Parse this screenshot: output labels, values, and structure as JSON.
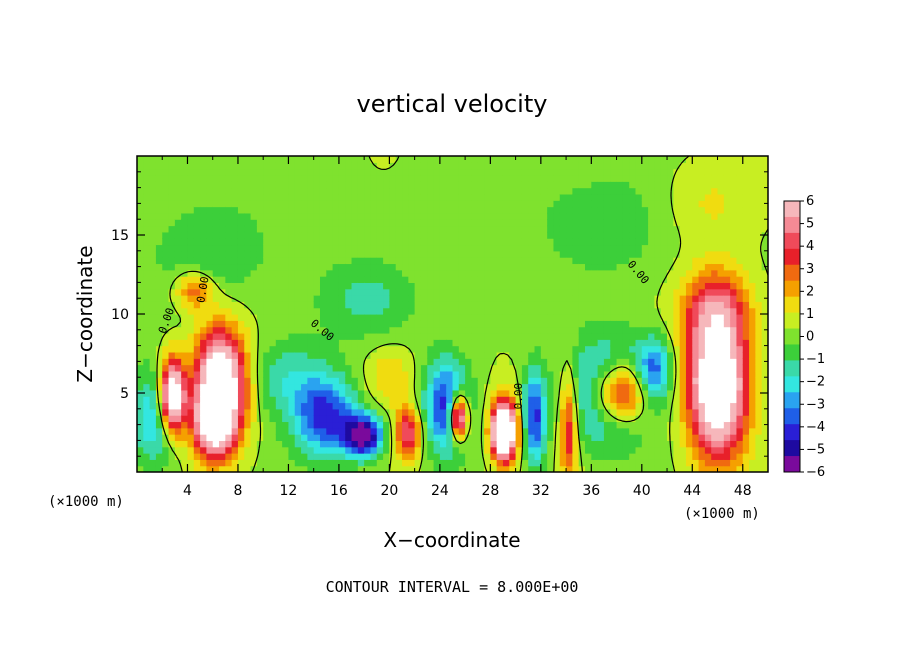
{
  "chart_data": {
    "type": "heatmap",
    "title": "vertical velocity",
    "xlabel": "X−coordinate",
    "ylabel": "Z−coordinate",
    "x_unit_left": "(×1000 m)",
    "x_unit_right": "(×1000 m)",
    "xlim": [
      0,
      50
    ],
    "ylim": [
      0,
      20
    ],
    "x_ticks": [
      4,
      8,
      12,
      16,
      20,
      24,
      28,
      32,
      36,
      40,
      44,
      48
    ],
    "y_ticks": [
      5,
      10,
      15
    ],
    "colorbar": {
      "labels": [
        "6",
        "5",
        "4",
        "3",
        "2",
        "1",
        "0",
        "−1",
        "−2",
        "−3",
        "−4",
        "−5",
        "−6"
      ],
      "min": -6,
      "max": 6,
      "colors": [
        "#7a0a9c",
        "#1e0aa0",
        "#2a1fd6",
        "#1f5fe8",
        "#2aa3f0",
        "#33e6e0",
        "#3ad9a8",
        "#3ccf3a",
        "#7fe22e",
        "#c8ee22",
        "#f0dc10",
        "#f5a000",
        "#f06a10",
        "#e8202a",
        "#f04a5a",
        "#f58a95",
        "#f6b7bb"
      ]
    },
    "contour_labels": [
      "0.00",
      "0.00",
      "0.00",
      "0.00",
      "0.00"
    ],
    "features": [
      {
        "x": 2.8,
        "z": 4.8,
        "w": 1.0,
        "h": 2.3,
        "v": 9
      },
      {
        "x": 6.6,
        "z": 5.5,
        "w": 2.0,
        "h": 3.5,
        "v": 9
      },
      {
        "x": 6.0,
        "z": 3.0,
        "w": 1.5,
        "h": 2.0,
        "v": 5
      },
      {
        "x": 1.5,
        "z": 3.5,
        "w": 1.8,
        "h": 3.0,
        "v": -3
      },
      {
        "x": 4.5,
        "z": 11.5,
        "w": 1.5,
        "h": 1.2,
        "v": 3
      },
      {
        "x": 15.0,
        "z": 3.5,
        "w": 2.5,
        "h": 2.5,
        "v": -4.5
      },
      {
        "x": 18.0,
        "z": 2.3,
        "w": 1.5,
        "h": 1.3,
        "v": -6
      },
      {
        "x": 21.5,
        "z": 2.5,
        "w": 1.0,
        "h": 1.6,
        "v": 4.5
      },
      {
        "x": 24.5,
        "z": 4.2,
        "w": 1.8,
        "h": 3.0,
        "v": -4.5
      },
      {
        "x": 25.5,
        "z": 3.5,
        "w": 0.7,
        "h": 1.4,
        "v": 8
      },
      {
        "x": 29.0,
        "z": 2.5,
        "w": 0.8,
        "h": 1.5,
        "v": 8
      },
      {
        "x": 29.2,
        "z": 2.8,
        "w": 1.2,
        "h": 2.2,
        "v": 4.5
      },
      {
        "x": 31.5,
        "z": 3.5,
        "w": 0.9,
        "h": 3.0,
        "v": -4.5
      },
      {
        "x": 34.2,
        "z": 3.0,
        "w": 0.7,
        "h": 3.5,
        "v": 4.0
      },
      {
        "x": 37.5,
        "z": 5.0,
        "w": 3.0,
        "h": 3.0,
        "v": -5.5
      },
      {
        "x": 38.2,
        "z": 5.0,
        "w": 2.2,
        "h": 2.0,
        "v": 8
      },
      {
        "x": 46.0,
        "z": 5.5,
        "w": 2.3,
        "h": 4.5,
        "v": 9
      },
      {
        "x": 45.8,
        "z": 10.5,
        "w": 2.8,
        "h": 2.5,
        "v": 3.0
      },
      {
        "x": 41.0,
        "z": 6.5,
        "w": 1.5,
        "h": 2.0,
        "v": -3.5
      },
      {
        "x": 6.0,
        "z": 14.0,
        "w": 5.0,
        "h": 3.5,
        "v": -1.2
      },
      {
        "x": 18.0,
        "z": 11.0,
        "w": 4.0,
        "h": 2.5,
        "v": -1.5
      },
      {
        "x": 38.0,
        "z": 16.0,
        "w": 8.0,
        "h": 4.0,
        "v": -1.0
      },
      {
        "x": 45.0,
        "z": 17.0,
        "w": 4.0,
        "h": 3.0,
        "v": 1.3
      },
      {
        "x": 12.0,
        "z": 6.0,
        "w": 3.0,
        "h": 2.5,
        "v": -1.8
      },
      {
        "x": 20.0,
        "z": 6.0,
        "w": 2.0,
        "h": 2.0,
        "v": 1.5
      }
    ],
    "note": "CONTOUR INTERVAL = 8.000E+00"
  }
}
